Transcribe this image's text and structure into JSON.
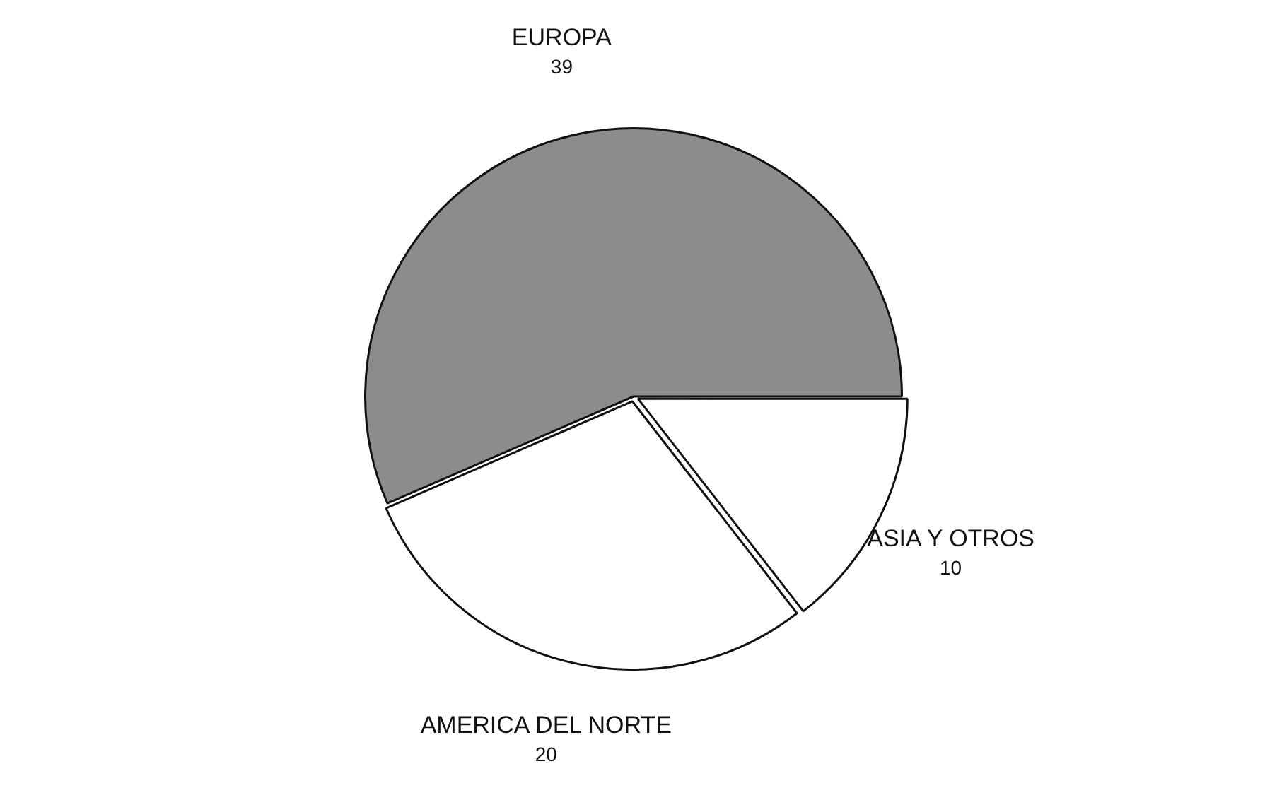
{
  "chart_data": {
    "type": "pie",
    "categories": [
      "EUROPA",
      "ASIA Y OTROS",
      "AMERICA DEL NORTE"
    ],
    "values": [
      39,
      10,
      20
    ],
    "colors": [
      "#8c8c8c",
      "#ffffff",
      "#ffffff"
    ],
    "data_labels": true,
    "legend": false
  }
}
